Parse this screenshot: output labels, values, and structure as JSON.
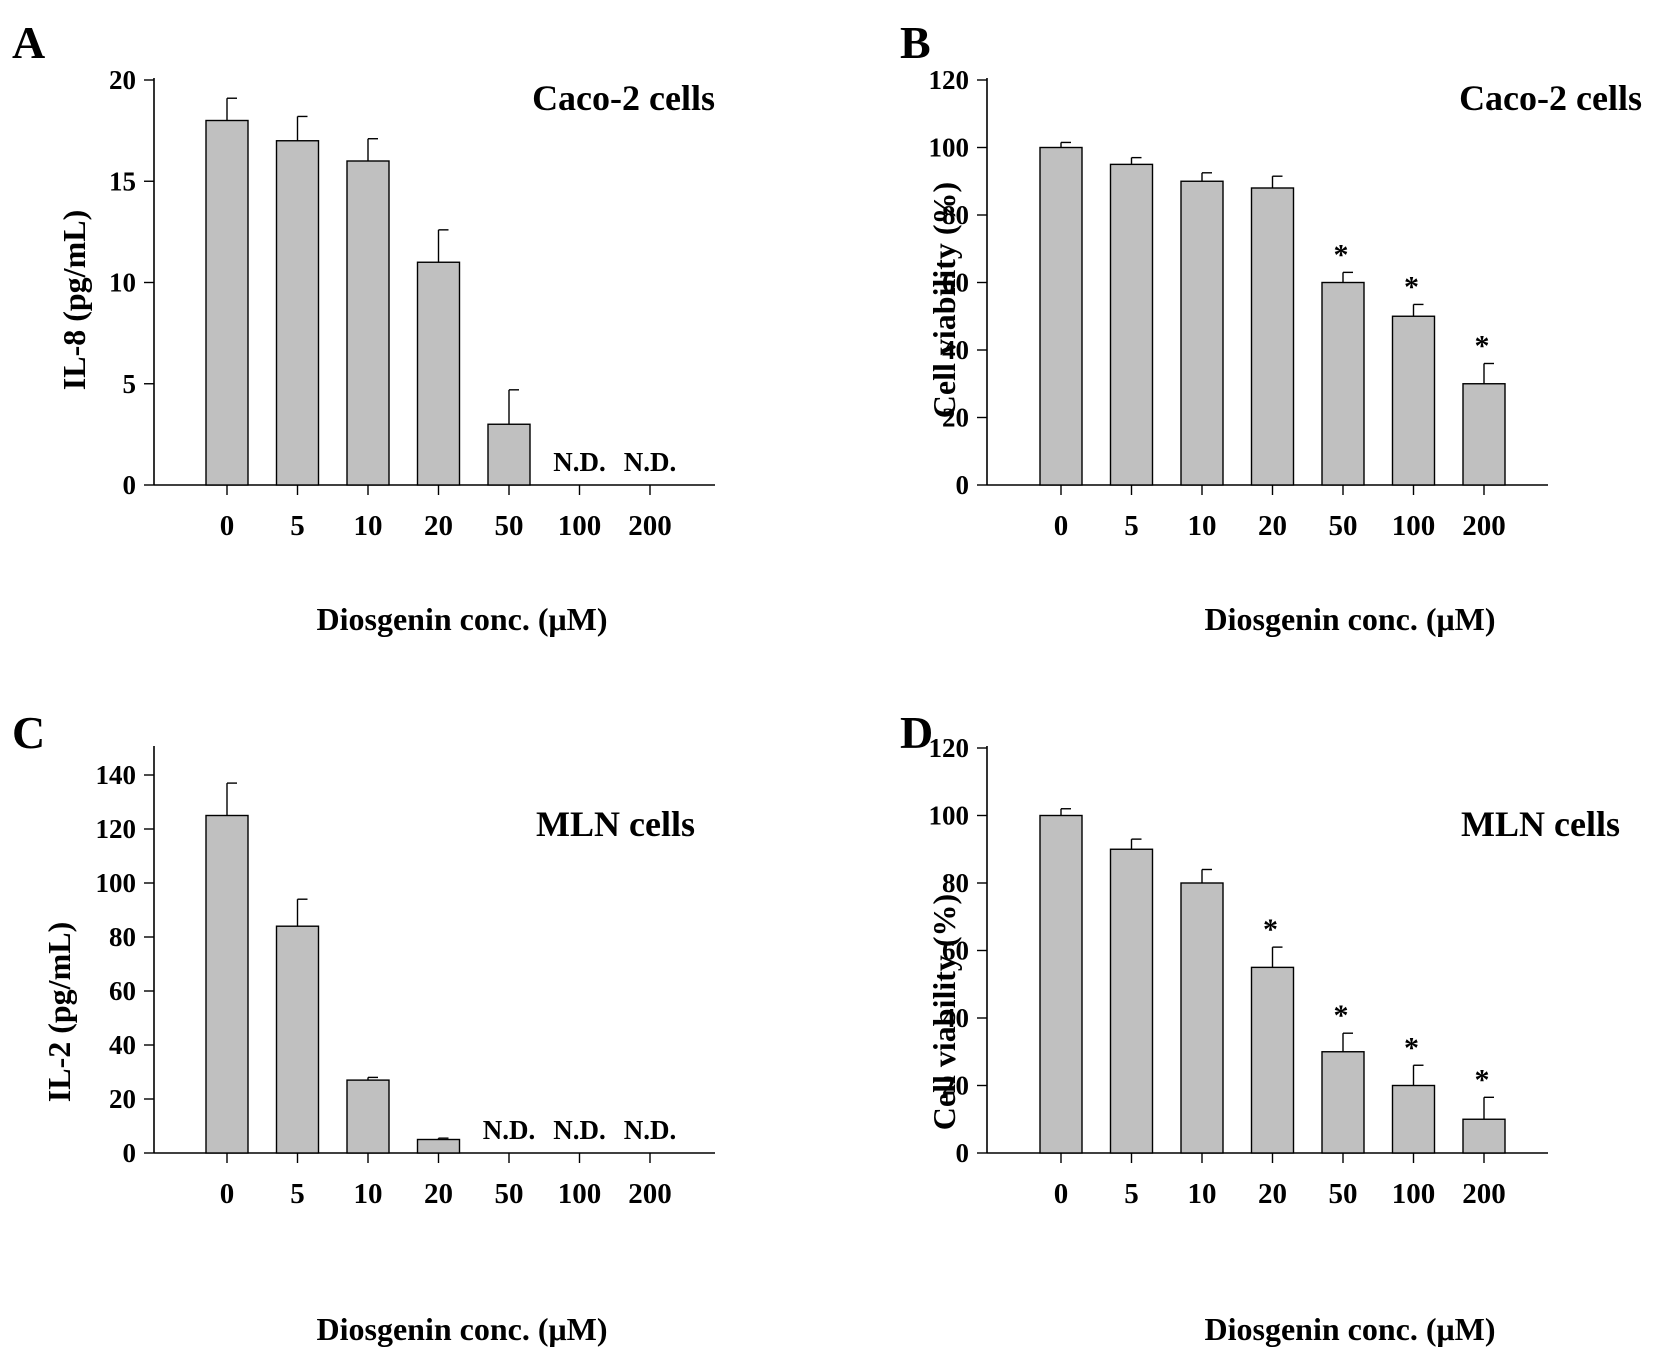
{
  "figure": {
    "bar_color": "#c0c0c0",
    "edge_color": "#000000"
  },
  "chart_data": [
    {
      "panel": "A",
      "type": "bar",
      "title": "Caco-2 cells",
      "xlabel": "Diosgenin conc. (μM)",
      "ylabel": "IL-8 (pg/mL)",
      "ylim": [
        0,
        20
      ],
      "yticks": [
        0,
        5,
        10,
        15,
        20
      ],
      "categories": [
        "0",
        "5",
        "10",
        "20",
        "50",
        "100",
        "200"
      ],
      "values": [
        18,
        17,
        16,
        11,
        3,
        null,
        null
      ],
      "errors": [
        1.1,
        1.2,
        1.1,
        1.6,
        1.7,
        null,
        null
      ],
      "labels": [
        "",
        "",
        "",
        "",
        "",
        "N.D.",
        "N.D."
      ],
      "significance": [
        "",
        "",
        "",
        "",
        "",
        "",
        ""
      ]
    },
    {
      "panel": "B",
      "type": "bar",
      "title": "Caco-2 cells",
      "xlabel": "Diosgenin conc. (μM)",
      "ylabel": "Cell viability (%)",
      "ylim": [
        0,
        120
      ],
      "yticks": [
        0,
        20,
        40,
        60,
        80,
        100,
        120
      ],
      "categories": [
        "0",
        "5",
        "10",
        "20",
        "50",
        "100",
        "200"
      ],
      "values": [
        100,
        95,
        90,
        88,
        60,
        50,
        30
      ],
      "errors": [
        1.5,
        2,
        2.5,
        3.5,
        3,
        3.5,
        6
      ],
      "labels": [
        "",
        "",
        "",
        "",
        "",
        "",
        ""
      ],
      "significance": [
        "",
        "",
        "",
        "",
        "*",
        "*",
        "*"
      ]
    },
    {
      "panel": "C",
      "type": "bar",
      "title": "MLN cells",
      "xlabel": "Diosgenin conc. (μM)",
      "ylabel": "IL-2 (pg/mL)",
      "ylim": [
        0,
        150
      ],
      "yticks": [
        0,
        20,
        40,
        60,
        80,
        100,
        120,
        140
      ],
      "categories": [
        "0",
        "5",
        "10",
        "20",
        "50",
        "100",
        "200"
      ],
      "values": [
        125,
        84,
        27,
        5,
        null,
        null,
        null
      ],
      "errors": [
        12,
        10,
        1,
        0.5,
        null,
        null,
        null
      ],
      "labels": [
        "",
        "",
        "",
        "",
        "N.D.",
        "N.D.",
        "N.D."
      ],
      "significance": [
        "",
        "",
        "",
        "",
        "",
        "",
        ""
      ]
    },
    {
      "panel": "D",
      "type": "bar",
      "title": "MLN cells",
      "xlabel": "Diosgenin conc. (μM)",
      "ylabel": "Cell viability (%)",
      "ylim": [
        0,
        120
      ],
      "yticks": [
        0,
        20,
        40,
        60,
        80,
        100,
        120
      ],
      "categories": [
        "0",
        "5",
        "10",
        "20",
        "50",
        "100",
        "200"
      ],
      "values": [
        100,
        90,
        80,
        55,
        30,
        20,
        10
      ],
      "errors": [
        2,
        3,
        4,
        6,
        5.5,
        6,
        6.5
      ],
      "labels": [
        "",
        "",
        "",
        "",
        "",
        "",
        ""
      ],
      "significance": [
        "",
        "",
        "",
        "*",
        "*",
        "*",
        "*"
      ]
    }
  ]
}
